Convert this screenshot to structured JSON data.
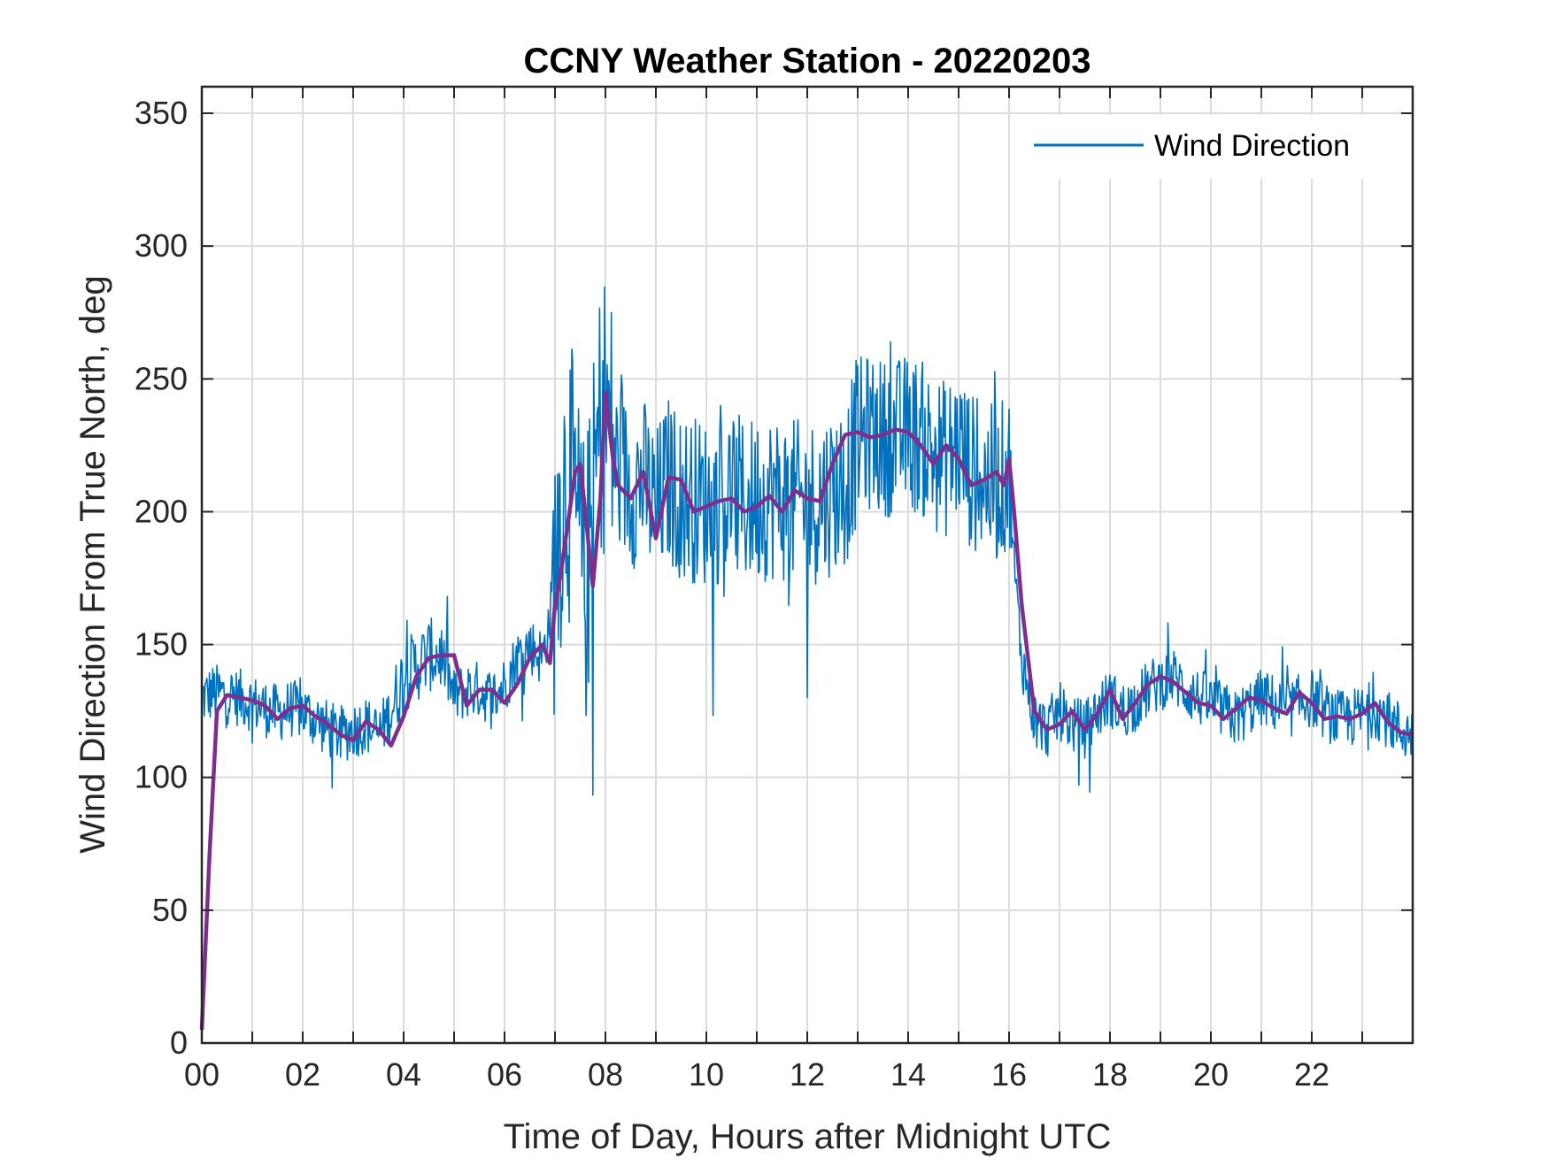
{
  "chart_data": {
    "type": "line",
    "title": "CCNY Weather Station - 20220203",
    "xlabel": "Time of Day, Hours after Midnight UTC",
    "ylabel": "Wind Direction From True North, deg",
    "xlim": [
      0,
      24
    ],
    "ylim": [
      0,
      360
    ],
    "xticks": [
      0,
      2,
      4,
      6,
      8,
      10,
      12,
      14,
      16,
      18,
      20,
      22
    ],
    "xtick_labels": [
      "00",
      "02",
      "04",
      "06",
      "08",
      "10",
      "12",
      "14",
      "16",
      "18",
      "20",
      "22"
    ],
    "yticks": [
      0,
      50,
      100,
      150,
      200,
      250,
      300,
      350
    ],
    "ytick_labels": [
      "0",
      "50",
      "100",
      "150",
      "200",
      "250",
      "300",
      "350"
    ],
    "grid": true,
    "legend": {
      "position": "top-right",
      "entries": [
        "Wind Direction"
      ]
    },
    "series": [
      {
        "name": "Wind Direction",
        "color": "#0072BD",
        "description": "raw high-frequency samples (noisy)",
        "x": [
          0,
          0.25,
          0.5,
          0.75,
          1,
          1.25,
          1.5,
          1.75,
          2,
          2.25,
          2.5,
          2.75,
          3,
          3.25,
          3.5,
          3.75,
          4,
          4.25,
          4.5,
          4.75,
          5,
          5.25,
          5.5,
          5.75,
          6,
          6.25,
          6.5,
          6.75,
          6.9,
          7.0,
          7.1,
          7.25,
          7.4,
          7.5,
          7.6,
          7.75,
          7.9,
          8.0,
          8.25,
          8.5,
          8.75,
          9,
          9.25,
          9.5,
          9.75,
          10,
          10.25,
          10.5,
          10.75,
          11,
          11.25,
          11.5,
          11.75,
          12,
          12.25,
          12.5,
          12.75,
          13,
          13.25,
          13.5,
          13.75,
          14,
          14.25,
          14.5,
          14.75,
          15,
          15.25,
          15.5,
          15.75,
          16,
          16.1,
          16.25,
          16.5,
          16.75,
          17,
          17.25,
          17.5,
          17.75,
          18,
          18.25,
          18.5,
          18.75,
          19,
          19.25,
          19.5,
          19.75,
          20,
          20.25,
          20.5,
          20.75,
          21,
          21.25,
          21.5,
          21.75,
          22,
          22.25,
          22.5,
          22.75,
          23,
          23.25,
          23.5,
          23.75,
          24
        ],
        "values": [
          130,
          132,
          131,
          130,
          128,
          126,
          124,
          126,
          125,
          122,
          118,
          116,
          118,
          120,
          116,
          125,
          138,
          142,
          146,
          146,
          130,
          133,
          133,
          130,
          135,
          145,
          150,
          145,
          160,
          180,
          200,
          215,
          200,
          185,
          170,
          200,
          235,
          240,
          215,
          210,
          212,
          200,
          212,
          205,
          205,
          203,
          204,
          207,
          203,
          205,
          206,
          205,
          203,
          203,
          205,
          208,
          210,
          228,
          230,
          228,
          228,
          230,
          228,
          222,
          220,
          225,
          215,
          212,
          210,
          215,
          180,
          145,
          122,
          118,
          125,
          120,
          118,
          125,
          130,
          125,
          128,
          133,
          136,
          138,
          133,
          130,
          128,
          125,
          122,
          126,
          130,
          128,
          125,
          128,
          130,
          125,
          122,
          122,
          124,
          126,
          122,
          118,
          116
        ]
      },
      {
        "name": "",
        "color": "#7E2F8E",
        "description": "smoothed running mean",
        "x": [
          0,
          0.15,
          0.3,
          0.5,
          0.75,
          1,
          1.25,
          1.5,
          1.75,
          2,
          2.25,
          2.5,
          2.75,
          3,
          3.25,
          3.5,
          3.75,
          4,
          4.25,
          4.5,
          4.75,
          5,
          5.25,
          5.5,
          5.75,
          6,
          6.25,
          6.5,
          6.75,
          6.9,
          7.0,
          7.1,
          7.25,
          7.4,
          7.5,
          7.6,
          7.75,
          7.9,
          8.0,
          8.15,
          8.25,
          8.5,
          8.75,
          9,
          9.25,
          9.5,
          9.75,
          10,
          10.25,
          10.5,
          10.75,
          11,
          11.25,
          11.5,
          11.75,
          12,
          12.25,
          12.5,
          12.75,
          13,
          13.25,
          13.5,
          13.75,
          14,
          14.25,
          14.5,
          14.75,
          15,
          15.25,
          15.5,
          15.75,
          15.9,
          16.0,
          16.1,
          16.25,
          16.5,
          16.75,
          17,
          17.25,
          17.5,
          17.75,
          18,
          18.25,
          18.5,
          18.75,
          19,
          19.25,
          19.5,
          19.75,
          20,
          20.25,
          20.5,
          20.75,
          21,
          21.25,
          21.5,
          21.75,
          22,
          22.25,
          22.5,
          22.75,
          23,
          23.25,
          23.5,
          23.75,
          24
        ],
        "values": [
          5,
          70,
          125,
          131,
          130,
          129,
          127,
          122,
          126,
          127,
          123,
          120,
          116,
          114,
          121,
          118,
          112,
          123,
          138,
          145,
          146,
          146,
          127,
          133,
          133,
          128,
          135,
          145,
          150,
          143,
          165,
          175,
          195,
          215,
          218,
          200,
          172,
          205,
          245,
          220,
          210,
          205,
          215,
          190,
          213,
          212,
          200,
          202,
          204,
          205,
          200,
          202,
          206,
          200,
          208,
          205,
          204,
          218,
          229,
          230,
          228,
          229,
          231,
          230,
          225,
          218,
          225,
          220,
          210,
          212,
          215,
          210,
          220,
          200,
          165,
          125,
          118,
          120,
          125,
          118,
          124,
          133,
          122,
          128,
          135,
          138,
          136,
          132,
          128,
          127,
          122,
          126,
          130,
          129,
          126,
          124,
          132,
          128,
          122,
          123,
          122,
          124,
          128,
          121,
          117,
          116
        ]
      }
    ]
  }
}
